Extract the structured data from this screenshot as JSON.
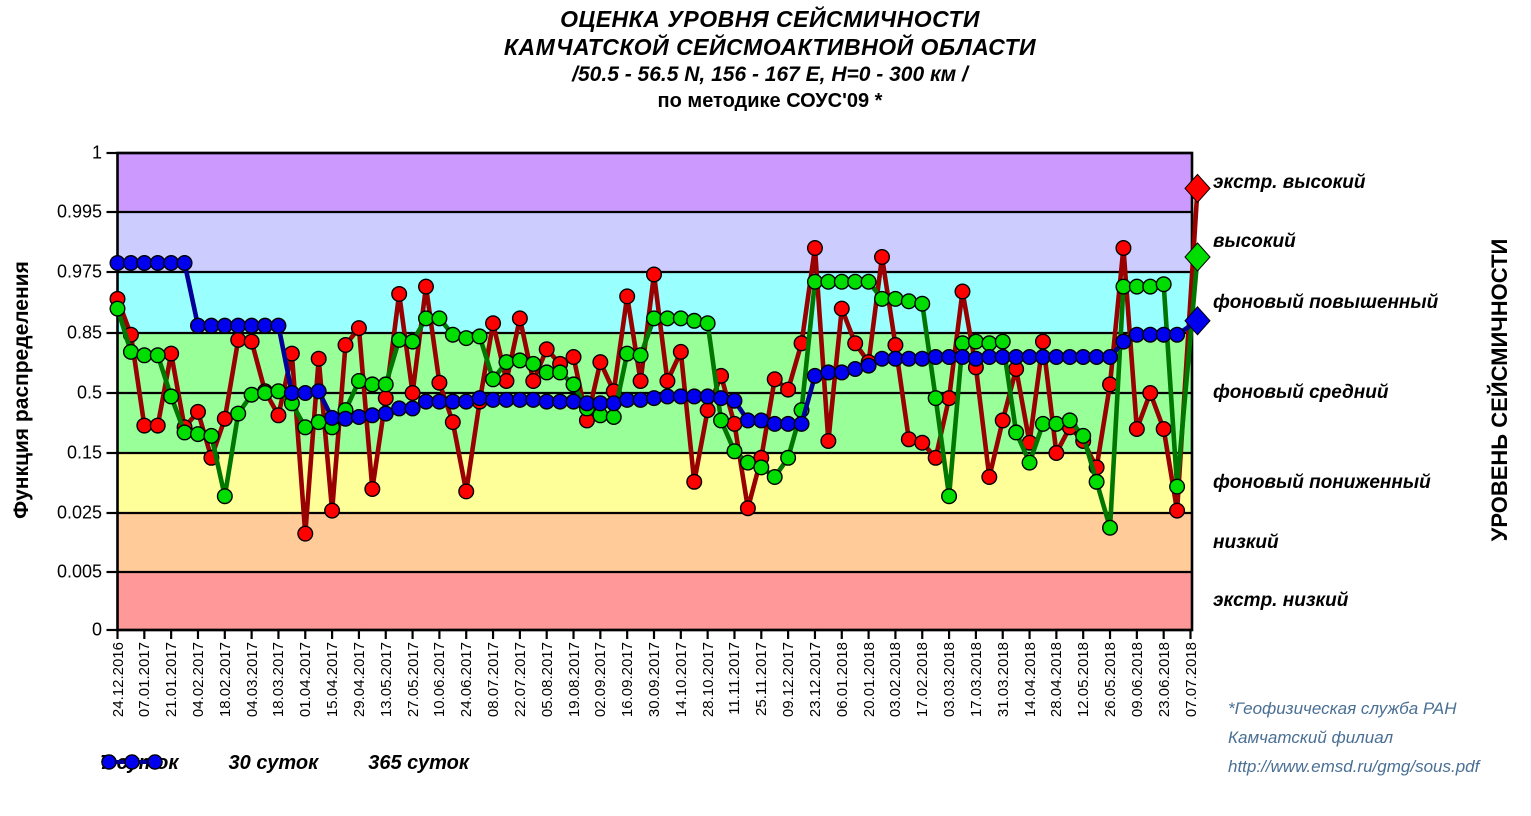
{
  "title": {
    "line1": "ОЦЕНКА УРОВНЯ СЕЙСМИЧНОСТИ",
    "line2": "КАМЧАТСКОЙ СЕЙСМОАКТИВНОЙ ОБЛАСТИ",
    "line3": "/50.5  - 56.5  N, 156  - 167 Е, Н=0 - 300 км /",
    "line4": "по методике СОУС'09 *"
  },
  "footer": {
    "line1": "*Геофизическая служба РАН",
    "line2": "Камчатский филиал",
    "line3": "http://www.emsd.ru/gmg/sous.pdf"
  },
  "chart_data": {
    "type": "line",
    "title": "ОЦЕНКА УРОВНЯ СЕЙСМИЧНОСТИ КАМЧАТСКОЙ СЕЙСМОАКТИВНОЙ ОБЛАСТИ",
    "ylabel": "Функция распределения",
    "right_axis_label": "УРОВЕНЬ СЕЙСМИЧНОСТИ",
    "y_ticks": [
      "1",
      "0.995",
      "0.975",
      "0.85",
      "0.5",
      "0.15",
      "0.025",
      "0.005",
      "0"
    ],
    "y_scale_breakpoints": [
      0,
      0.005,
      0.025,
      0.15,
      0.5,
      0.85,
      0.975,
      0.995,
      1
    ],
    "y_scale_note": "nonlinear: equal-height bands between consecutive tick values",
    "x_tick_labels": [
      "24.12.2016",
      "07.01.2017",
      "21.01.2017",
      "04.02.2017",
      "18.02.2017",
      "04.03.2017",
      "18.03.2017",
      "01.04.2017",
      "15.04.2017",
      "29.04.2017",
      "13.05.2017",
      "27.05.2017",
      "10.06.2017",
      "24.06.2017",
      "08.07.2017",
      "22.07.2017",
      "05.08.2017",
      "19.08.2017",
      "02.09.2017",
      "16.09.2017",
      "30.09.2017",
      "14.10.2017",
      "28.10.2017",
      "11.11.2017",
      "25.11.2017",
      "09.12.2017",
      "23.12.2017",
      "06.01.2018",
      "20.01.2018",
      "03.02.2018",
      "17.02.2018",
      "03.03.2018",
      "17.03.2018",
      "31.03.2018",
      "14.04.2018",
      "28.04.2018",
      "12.05.2018",
      "26.05.2018",
      "09.06.2018",
      "23.06.2018",
      "07.07.2018"
    ],
    "x_note": "data points weekly; axis labels every 2 weeks",
    "bands": [
      {
        "label": "экстр. высокий",
        "from": 0.995,
        "to": 1,
        "color": "#CC99FF"
      },
      {
        "label": "высокий",
        "from": 0.975,
        "to": 0.995,
        "color": "#CCCCFF"
      },
      {
        "label": "фоновый повышенный",
        "from": 0.85,
        "to": 0.975,
        "color": "#99FFFF"
      },
      {
        "label": "фоновый средний",
        "from": 0.15,
        "to": 0.85,
        "color": "#99FF99"
      },
      {
        "label": "фоновый пониженный",
        "from": 0.025,
        "to": 0.15,
        "color": "#FFFF99"
      },
      {
        "label": "низкий",
        "from": 0.005,
        "to": 0.025,
        "color": "#FFCC99"
      },
      {
        "label": "экстр. низкий",
        "from": 0,
        "to": 0.005,
        "color": "#FF9999"
      }
    ],
    "series": [
      {
        "name": "7 суток",
        "marker_color": "#FF0000",
        "line_color": "#990000",
        "last_point_marker": "diamond",
        "values": [
          0.92,
          0.84,
          0.31,
          0.31,
          0.73,
          0.3,
          0.39,
          0.14,
          0.35,
          0.81,
          0.8,
          0.51,
          0.37,
          0.73,
          0.018,
          0.7,
          0.03,
          0.78,
          0.86,
          0.075,
          0.47,
          0.93,
          0.5,
          0.945,
          0.56,
          0.33,
          0.07,
          0.45,
          0.87,
          0.57,
          0.88,
          0.57,
          0.755,
          0.67,
          0.71,
          0.34,
          0.68,
          0.51,
          0.925,
          0.57,
          0.97,
          0.57,
          0.74,
          0.09,
          0.4,
          0.6,
          0.32,
          0.035,
          0.14,
          0.58,
          0.52,
          0.79,
          0.983,
          0.22,
          0.9,
          0.79,
          0.68,
          0.98,
          0.78,
          0.23,
          0.21,
          0.14,
          0.47,
          0.935,
          0.65,
          0.1,
          0.34,
          0.64,
          0.21,
          0.8,
          0.15,
          0.3,
          0.22,
          0.12,
          0.55,
          0.983,
          0.29,
          0.5,
          0.29,
          0.03,
          0.997
        ]
      },
      {
        "name": "30 суток",
        "marker_color": "#00DD00",
        "line_color": "#007700",
        "last_point_marker": "diamond",
        "values": [
          0.9,
          0.74,
          0.72,
          0.72,
          0.48,
          0.27,
          0.26,
          0.25,
          0.06,
          0.38,
          0.49,
          0.5,
          0.51,
          0.44,
          0.3,
          0.33,
          0.3,
          0.4,
          0.57,
          0.55,
          0.55,
          0.81,
          0.8,
          0.88,
          0.88,
          0.84,
          0.82,
          0.83,
          0.58,
          0.68,
          0.69,
          0.67,
          0.62,
          0.62,
          0.55,
          0.41,
          0.37,
          0.36,
          0.73,
          0.72,
          0.88,
          0.88,
          0.88,
          0.875,
          0.87,
          0.34,
          0.16,
          0.13,
          0.12,
          0.1,
          0.14,
          0.4,
          0.955,
          0.955,
          0.955,
          0.955,
          0.955,
          0.92,
          0.92,
          0.915,
          0.91,
          0.47,
          0.06,
          0.79,
          0.8,
          0.79,
          0.8,
          0.27,
          0.13,
          0.32,
          0.32,
          0.34,
          0.25,
          0.09,
          0.02,
          0.945,
          0.945,
          0.945,
          0.95,
          0.08,
          0.98
        ]
      },
      {
        "name": "365 суток",
        "marker_color": "#0000EE",
        "line_color": "#000099",
        "last_point_marker": "diamond",
        "values": [
          0.978,
          0.978,
          0.978,
          0.978,
          0.978,
          0.978,
          0.865,
          0.865,
          0.865,
          0.865,
          0.865,
          0.865,
          0.865,
          0.5,
          0.5,
          0.51,
          0.355,
          0.35,
          0.36,
          0.37,
          0.38,
          0.41,
          0.41,
          0.45,
          0.45,
          0.45,
          0.45,
          0.47,
          0.46,
          0.46,
          0.46,
          0.46,
          0.45,
          0.45,
          0.45,
          0.44,
          0.44,
          0.44,
          0.46,
          0.46,
          0.47,
          0.48,
          0.48,
          0.48,
          0.48,
          0.47,
          0.455,
          0.34,
          0.34,
          0.32,
          0.32,
          0.32,
          0.6,
          0.62,
          0.62,
          0.64,
          0.66,
          0.7,
          0.7,
          0.7,
          0.7,
          0.71,
          0.71,
          0.71,
          0.7,
          0.71,
          0.71,
          0.71,
          0.71,
          0.71,
          0.71,
          0.71,
          0.71,
          0.71,
          0.71,
          0.8,
          0.84,
          0.84,
          0.84,
          0.84,
          0.875
        ]
      }
    ],
    "legend_position": "bottom-left",
    "grid": true
  }
}
